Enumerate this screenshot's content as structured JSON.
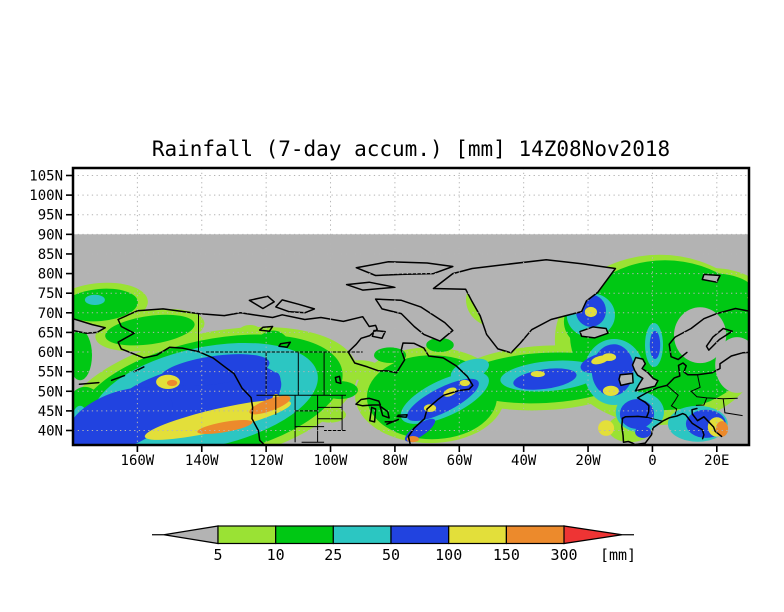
{
  "title": "Rainfall (7-day accum.) [mm] 14Z08Nov2018",
  "axes": {
    "lat_ticks": [
      "105N",
      "100N",
      "95N",
      "90N",
      "85N",
      "80N",
      "75N",
      "70N",
      "65N",
      "60N",
      "55N",
      "50N",
      "45N",
      "40N"
    ],
    "lat_values": [
      105,
      100,
      95,
      90,
      85,
      80,
      75,
      70,
      65,
      60,
      55,
      50,
      45,
      40
    ],
    "lon_ticks": [
      "160W",
      "140W",
      "120W",
      "100W",
      "80W",
      "60W",
      "40W",
      "20W",
      "0",
      "20E"
    ],
    "lon_values": [
      -160,
      -140,
      -120,
      -100,
      -80,
      -60,
      -40,
      -20,
      0,
      20
    ]
  },
  "legend": {
    "tick_labels": [
      "5",
      "10",
      "25",
      "50",
      "100",
      "150",
      "300"
    ],
    "unit_label": "[mm]",
    "swatches": [
      {
        "range": "<5",
        "color": "#b3b3b3"
      },
      {
        "range": "5-10",
        "color": "#9ae234"
      },
      {
        "range": "10-25",
        "color": "#00c814"
      },
      {
        "range": "25-50",
        "color": "#2cc6c2"
      },
      {
        "range": "50-100",
        "color": "#2143e0"
      },
      {
        "range": "100-150",
        "color": "#e3df3a"
      },
      {
        "range": "150-300",
        "color": "#ec8a2c"
      },
      {
        "range": ">300",
        "color": "#ee3434"
      }
    ]
  },
  "chart_data": {
    "type": "heatmap",
    "subtype": "filled-contour map, lat/lon projection",
    "variable": "Rainfall (7-day accumulation)",
    "units": "mm",
    "valid_time": "14Z08Nov2018",
    "lon_range": [
      -180,
      30
    ],
    "lat_range": [
      36.3,
      106.9
    ],
    "lat_gridline_step_deg": 5,
    "lon_gridline_step_deg": 20,
    "thresholds_mm": [
      5,
      10,
      25,
      50,
      100,
      150,
      300
    ],
    "background": "gray below 5 mm; white (no data) above 90N",
    "feature_format": [
      "lon_center",
      "lat_center",
      "lon_halfwidth_deg",
      "lat_halfwidth_deg",
      "rotation_deg"
    ],
    "precip_features": {
      "5-10": [
        [
          -137.4,
          48.3,
          46.6,
          16.6,
          -12
        ],
        [
          -171.6,
          72,
          14.9,
          5.6,
          -5
        ],
        [
          -156.1,
          65.6,
          17.1,
          5.1,
          -8
        ],
        [
          -90.9,
          55.4,
          6.8,
          2.5,
          0
        ],
        [
          -72.2,
          58,
          5.6,
          2.3,
          0
        ],
        [
          -100.2,
          44,
          5,
          2,
          0
        ],
        [
          -125,
          65.6,
          3.1,
          1.3,
          0
        ],
        [
          -69.1,
          49,
          23.3,
          12.2,
          0
        ],
        [
          -33.4,
          53.4,
          29.5,
          8.2,
          -3
        ],
        [
          -48,
          73.3,
          9.9,
          7.1,
          0
        ],
        [
          -16.3,
          67.1,
          12.4,
          8.2,
          0
        ],
        [
          2.3,
          63.1,
          32.6,
          21.7,
          0
        ],
        [
          19.4,
          76.6,
          13.7,
          4.8,
          3
        ],
        [
          -7,
          40.6,
          6.8,
          3.6,
          0
        ]
      ],
      "10-25": [
        [
          -137.4,
          48.3,
          41.9,
          14.8,
          -12
        ],
        [
          -171.6,
          72,
          11.8,
          4.1,
          -5
        ],
        [
          -176.3,
          44,
          6.2,
          7.1,
          0
        ],
        [
          -177.8,
          59.2,
          3.7,
          6.4,
          0
        ],
        [
          -156.1,
          65.6,
          14,
          3.6,
          -8
        ],
        [
          -119.4,
          54.1,
          8.1,
          11.5,
          10
        ],
        [
          -97.1,
          50.3,
          5.6,
          2.3,
          0
        ],
        [
          -81.5,
          59.2,
          5,
          2,
          0
        ],
        [
          -66,
          61.8,
          4.3,
          1.8,
          0
        ],
        [
          -68.5,
          48.5,
          20.2,
          10.7,
          0
        ],
        [
          -33.4,
          53.4,
          26.4,
          6.4,
          -3
        ],
        [
          -47.4,
          73.8,
          8.1,
          6.1,
          0
        ],
        [
          -16.9,
          67.7,
          10.6,
          7.1,
          0
        ],
        [
          3.9,
          64.3,
          29.5,
          19.1,
          0
        ],
        [
          19.4,
          76.3,
          11.8,
          3.8,
          3
        ]
      ],
      "under5-gap": [
        [
          14.8,
          64.3,
          8.1,
          7.1,
          0
        ],
        [
          26.3,
          56.7,
          6.8,
          7.1,
          0
        ],
        [
          25.6,
          41.4,
          6.8,
          4.6,
          0
        ]
      ],
      "25-50": [
        [
          -139,
          48.5,
          35.7,
          12.7,
          -12
        ],
        [
          -118.8,
          52.4,
          4.3,
          8.7,
          12
        ],
        [
          -173.2,
          73.3,
          3.1,
          1.3,
          0
        ],
        [
          -177.8,
          42.7,
          2.5,
          3.6,
          0
        ],
        [
          -64.5,
          48.3,
          14.9,
          4.6,
          -25
        ],
        [
          -56.7,
          55.4,
          6.2,
          2.5,
          -20
        ],
        [
          -31.8,
          53.9,
          15.5,
          3.8,
          -5
        ],
        [
          -46.7,
          74.3,
          4.7,
          3.6,
          0
        ],
        [
          -19.1,
          69.4,
          7.5,
          5.6,
          0
        ],
        [
          -11.9,
          54.9,
          9.3,
          8.4,
          0
        ],
        [
          0.5,
          61.8,
          2.8,
          5.6,
          0
        ],
        [
          -3.9,
          44.7,
          7.5,
          5.1,
          0
        ],
        [
          14.1,
          41.7,
          9.3,
          4.6,
          0
        ]
      ],
      "50-100": [
        [
          -142.1,
          47.8,
          27.3,
          8.7,
          -12
        ],
        [
          -135.9,
          55.4,
          17.1,
          3.6,
          -8
        ],
        [
          -165.4,
          42.7,
          17.1,
          7.1,
          -20
        ],
        [
          -117.9,
          50.3,
          2.2,
          4.6,
          12
        ],
        [
          -65.1,
          47.8,
          12.4,
          3.1,
          -27
        ],
        [
          -72.2,
          40.1,
          5.6,
          1.5,
          -35
        ],
        [
          -33.4,
          53.1,
          9.9,
          2.5,
          -8
        ],
        [
          -16.3,
          57.2,
          6.2,
          2.3,
          -15
        ],
        [
          -46.4,
          74.8,
          3.4,
          2.5,
          0
        ],
        [
          -19.1,
          70.5,
          4.7,
          4.1,
          0
        ],
        [
          -12.3,
          55.4,
          6.5,
          6.6,
          5
        ],
        [
          0.8,
          61.8,
          1.6,
          3.6,
          0
        ],
        [
          -4.8,
          44.2,
          5.3,
          3.8,
          0
        ],
        [
          16.6,
          41.7,
          6.2,
          3.6,
          0
        ],
        [
          -2.9,
          39.6,
          2.5,
          1.5,
          0
        ]
      ],
      "100-150": [
        [
          -135,
          42.7,
          23.3,
          2.8,
          -13
        ],
        [
          -150.5,
          52.4,
          3.7,
          1.8,
          0
        ],
        [
          -116.9,
          47.8,
          1.2,
          1.5,
          0
        ],
        [
          -69.1,
          45.7,
          1.9,
          1,
          0
        ],
        [
          -62.9,
          49.8,
          2.2,
          1,
          -25
        ],
        [
          -58.3,
          52.1,
          1.6,
          0.8,
          0
        ],
        [
          -35.6,
          54.4,
          2.2,
          0.8,
          0
        ],
        [
          -16.3,
          58,
          2.8,
          1,
          -15
        ],
        [
          -47,
          75.1,
          1.6,
          0.8,
          0
        ],
        [
          -19.1,
          70.2,
          1.9,
          1.3,
          0
        ],
        [
          -13.5,
          58.7,
          2.2,
          1,
          0
        ],
        [
          -12.9,
          50.1,
          2.5,
          1.3,
          0
        ],
        [
          -14.4,
          40.6,
          2.5,
          2,
          0
        ],
        [
          20,
          40.9,
          2.8,
          2.5,
          0
        ]
      ],
      "150-300": [
        [
          -118.8,
          46.5,
          6.8,
          1.5,
          -20
        ],
        [
          -132.8,
          40.9,
          8.7,
          1.3,
          -10
        ],
        [
          -149.2,
          52.1,
          1.6,
          0.8,
          0
        ],
        [
          -74.4,
          37.8,
          1.9,
          0.8,
          0
        ],
        [
          -46.1,
          74,
          1.2,
          0.5,
          0
        ],
        [
          21.6,
          40.4,
          1.9,
          2,
          0
        ]
      ]
    }
  }
}
